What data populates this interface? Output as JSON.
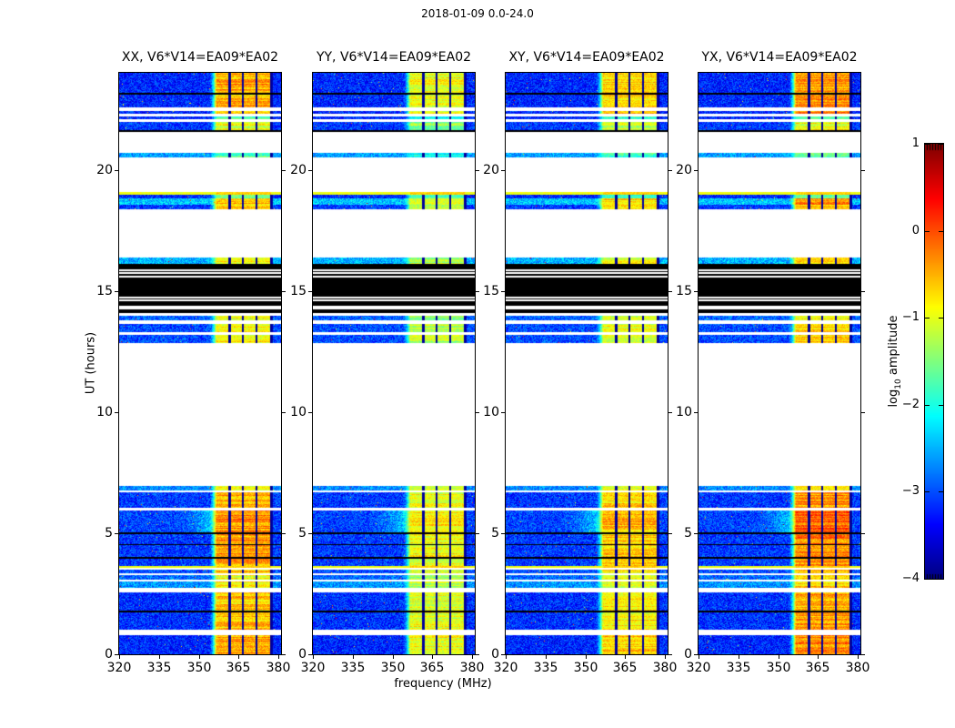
{
  "figure": {
    "title": "2018-01-09 0.0-24.0",
    "xlabel": "frequency (MHz)",
    "ylabel": "UT (hours)"
  },
  "axes": {
    "x_ticks": [
      320,
      335,
      350,
      365,
      380
    ],
    "x_tick_labels": [
      "320",
      "335",
      "350",
      "365",
      "380"
    ],
    "y_ticks": [
      0,
      5,
      10,
      15,
      20
    ],
    "y_tick_labels": [
      "0",
      "5",
      "10",
      "15",
      "20"
    ]
  },
  "colorbar": {
    "label": "log10 amplitude",
    "label_prefix": "log",
    "label_sub": "10",
    "label_suffix": " amplitude",
    "ticks": [
      1,
      0,
      -1,
      -2,
      -3,
      -4
    ],
    "tick_labels": [
      "1",
      "0",
      "−1",
      "−2",
      "−3",
      "−4"
    ],
    "range": [
      -4,
      1
    ],
    "colormap": "jet"
  },
  "chart_data": {
    "type": "heatmap",
    "title": "2018-01-09 0.0-24.0",
    "xlabel": "frequency (MHz)",
    "ylabel": "UT (hours)",
    "x_range_mhz": [
      320,
      381
    ],
    "x_ticks": [
      320,
      335,
      350,
      365,
      380
    ],
    "y_range_hours": [
      0,
      24
    ],
    "y_ticks": [
      0,
      5,
      10,
      15,
      20
    ],
    "value_range_log10": [
      -4,
      1
    ],
    "colormap": "jet",
    "legend_position": "right-colorbar",
    "grid": false,
    "description": "Four dynamic-spectrum panels (correlation products) of log10 amplitude vs frequency and UT time. Blue noise bands are interrupted by white gaps (no data), black rows near 14-16 h (flagged), and strong orange/red RFI columns near 357-377 MHz.",
    "panels": [
      {
        "title": "XX, V6*V14=EA09*EA02",
        "seed": 11,
        "rfi_gain": 0.97,
        "warmth": 0.0
      },
      {
        "title": "YY, V6*V14=EA09*EA02",
        "seed": 22,
        "rfi_gain": 0.8,
        "warmth": -0.15
      },
      {
        "title": "XY, V6*V14=EA09*EA02",
        "seed": 33,
        "rfi_gain": 0.88,
        "warmth": -0.05
      },
      {
        "title": "YX, V6*V14=EA09*EA02",
        "seed": 44,
        "rfi_gain": 1.02,
        "warmth": 0.05
      }
    ],
    "rfi_block": {
      "f0": 356.5,
      "f1": 377.2,
      "separators_mhz": [
        361.5,
        366.5,
        371.5
      ]
    },
    "bands": [
      {
        "t0": 0.0,
        "t1": 0.77,
        "kind": "noise",
        "base": -3.2,
        "rfi": 0.92
      },
      {
        "t0": 1.0,
        "t1": 1.72,
        "kind": "noise",
        "base": -3.15,
        "rfi": 0.85
      },
      {
        "t0": 1.72,
        "t1": 1.79,
        "kind": "blackline"
      },
      {
        "t0": 1.79,
        "t1": 2.54,
        "kind": "noise",
        "base": -3.15,
        "rfi": 0.85
      },
      {
        "t0": 2.76,
        "t1": 3.0,
        "kind": "noise",
        "base": -2.65,
        "rfi": 0.75
      },
      {
        "t0": 3.08,
        "t1": 3.28,
        "kind": "noise",
        "base": -2.85,
        "rfi": 0.7
      },
      {
        "t0": 3.35,
        "t1": 3.5,
        "kind": "noise",
        "base": -3.0,
        "rfi": 0.82
      },
      {
        "t0": 3.56,
        "t1": 3.64,
        "kind": "hline",
        "base": -0.95
      },
      {
        "t0": 3.64,
        "t1": 3.95,
        "kind": "noise",
        "base": -3.1,
        "rfi": 0.9
      },
      {
        "t0": 3.95,
        "t1": 4.02,
        "kind": "blackline"
      },
      {
        "t0": 4.02,
        "t1": 4.5,
        "kind": "noise",
        "base": -3.1,
        "rfi": 0.95
      },
      {
        "t0": 4.5,
        "t1": 4.56,
        "kind": "blackline"
      },
      {
        "t0": 4.56,
        "t1": 4.95,
        "kind": "noise",
        "base": -3.1,
        "rfi": 0.95
      },
      {
        "t0": 4.95,
        "t1": 5.02,
        "kind": "blackline"
      },
      {
        "t0": 5.02,
        "t1": 5.92,
        "kind": "noise",
        "base": -3.05,
        "rfi": 1.0,
        "glow": true
      },
      {
        "t0": 6.03,
        "t1": 6.7,
        "kind": "noise",
        "base": -3.1,
        "rfi": 0.9
      },
      {
        "t0": 6.76,
        "t1": 6.95,
        "kind": "noise",
        "base": -2.7,
        "rfi": 0.72
      },
      {
        "t0": 12.84,
        "t1": 13.18,
        "kind": "noise",
        "base": -3.0,
        "rfi": 0.75
      },
      {
        "t0": 13.29,
        "t1": 13.63,
        "kind": "noise",
        "base": -3.0,
        "rfi": 0.75
      },
      {
        "t0": 13.78,
        "t1": 13.97,
        "kind": "noise",
        "base": -2.9,
        "rfi": 0.65
      },
      {
        "t0": 14.08,
        "t1": 14.23,
        "kind": "black"
      },
      {
        "t0": 14.38,
        "t1": 16.11,
        "kind": "black",
        "white_lines": [
          14.65,
          14.76,
          15.63,
          15.78,
          15.89
        ]
      },
      {
        "t0": 16.11,
        "t1": 16.37,
        "kind": "noise",
        "base": -2.5,
        "rfi": 0.72
      },
      {
        "t0": 18.36,
        "t1": 18.55,
        "kind": "noise",
        "base": -3.1,
        "rfi": 0.8
      },
      {
        "t0": 18.55,
        "t1": 18.82,
        "kind": "noise",
        "base": -2.4,
        "rfi": 0.9
      },
      {
        "t0": 18.82,
        "t1": 18.97,
        "kind": "noise",
        "base": -3.2,
        "rfi": 0.3
      },
      {
        "t0": 18.97,
        "t1": 19.08,
        "kind": "hline",
        "base": -0.95
      },
      {
        "t0": 20.5,
        "t1": 20.7,
        "kind": "noise",
        "base": -2.6,
        "rfi": 0.25
      },
      {
        "t0": 21.55,
        "t1": 21.62,
        "kind": "blackline"
      },
      {
        "t0": 21.62,
        "t1": 21.97,
        "kind": "noise",
        "base": -3.1,
        "rfi": 0.62
      },
      {
        "t0": 22.08,
        "t1": 22.2,
        "kind": "noise",
        "base": -3.2,
        "rfi": 0.25
      },
      {
        "t0": 22.31,
        "t1": 23.1,
        "kind": "noise",
        "base": -3.2,
        "rfi": 0.9,
        "white_lines": [
          22.48,
          22.58
        ]
      },
      {
        "t0": 23.1,
        "t1": 23.17,
        "kind": "blackline"
      },
      {
        "t0": 23.17,
        "t1": 24.0,
        "kind": "noise",
        "base": -3.2,
        "rfi": 0.9
      }
    ]
  }
}
